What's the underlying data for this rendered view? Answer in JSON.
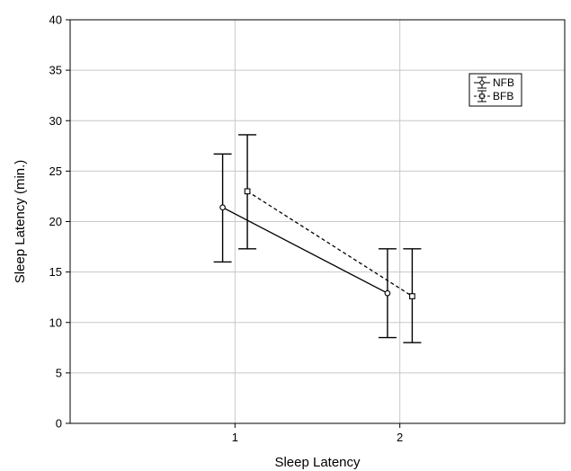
{
  "chart_data": {
    "type": "line",
    "title": "",
    "xlabel": "Sleep Latency",
    "ylabel": "Sleep Latency (min.)",
    "x_ticks": [
      "1",
      "2"
    ],
    "y_ticks": [
      "0",
      "5",
      "10",
      "15",
      "20",
      "25",
      "30",
      "35",
      "40"
    ],
    "ylim": [
      0,
      40
    ],
    "xlim": [
      0,
      3
    ],
    "grid": true,
    "legend_position": "top-right",
    "series": [
      {
        "name": "NFB",
        "style": "solid",
        "marker": "circle",
        "points": [
          {
            "x": 1,
            "y": 21.4,
            "err_low": 16.0,
            "err_high": 26.7
          },
          {
            "x": 2,
            "y": 12.9,
            "err_low": 8.5,
            "err_high": 17.3
          }
        ]
      },
      {
        "name": "BFB",
        "style": "dashed",
        "marker": "square",
        "points": [
          {
            "x": 1,
            "y": 23.0,
            "err_low": 17.3,
            "err_high": 28.6
          },
          {
            "x": 2,
            "y": 12.6,
            "err_low": 8.0,
            "err_high": 17.3
          }
        ]
      }
    ],
    "colors": {
      "line": "#000000",
      "grid": "#c8c8c8"
    }
  }
}
